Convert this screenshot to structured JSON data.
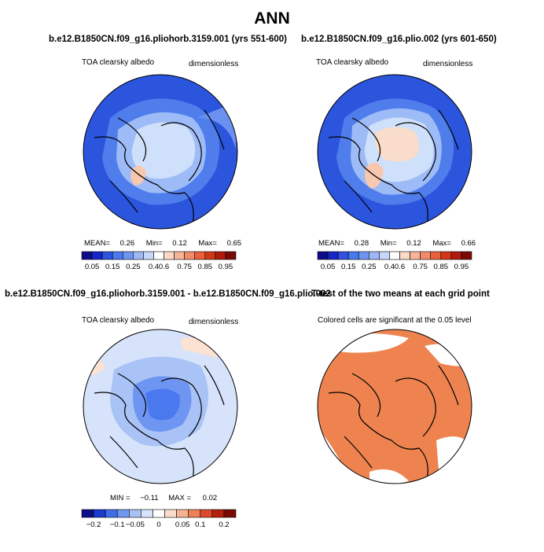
{
  "page_title": "ANN",
  "panels": {
    "top_left": {
      "title": "b.e12.B1850CN.f09_g16.pliohorb.3159.001 (yrs 551-600)",
      "left_label": "TOA clearsky albedo",
      "right_label": "dimensionless",
      "stats": {
        "mean_label": "MEAN=",
        "mean": "0.26",
        "min_label": "Min=",
        "min": "0.12",
        "max_label": "Max=",
        "max": "0.65"
      }
    },
    "top_right": {
      "title": "b.e12.B1850CN.f09_g16.plio.002 (yrs 601-650)",
      "left_label": "TOA clearsky albedo",
      "right_label": "dimensionless",
      "stats": {
        "mean_label": "MEAN=",
        "mean": "0.28",
        "min_label": "Min=",
        "min": "0.12",
        "max_label": "Max=",
        "max": "0.66"
      }
    },
    "bottom_left": {
      "title": "b.e12.B1850CN.f09_g16.pliohorb.3159.001 - b.e12.B1850CN.f09_g16.plio.002",
      "left_label": "TOA clearsky albedo",
      "right_label": "dimensionless",
      "stats": {
        "min_label": "MIN =",
        "min": "−0.11",
        "max_label": "MAX =",
        "max": "0.02"
      }
    },
    "bottom_right": {
      "title": "T-test of the two means at each grid point",
      "subtitle": "Colored cells are significant at the 0.05 level"
    }
  },
  "colorbars": {
    "abs": {
      "colors": [
        "#0d0d8a",
        "#1426c8",
        "#2f52e0",
        "#4a78ee",
        "#6f95f2",
        "#9cb6f6",
        "#c6d8fa",
        "#ffffff",
        "#fbd9c6",
        "#f7b499",
        "#f08c6c",
        "#e8603c",
        "#d23818",
        "#b01a0c",
        "#7a0a06"
      ],
      "tick_labels": [
        "0.05",
        "0.15",
        "0.25",
        "0.4",
        "0.6",
        "0.75",
        "0.85",
        "0.95"
      ]
    },
    "diff": {
      "colors": [
        "#0d0d8a",
        "#1a3ad0",
        "#3f6ee8",
        "#7097f0",
        "#a8c2f6",
        "#d7e3fb",
        "#ffffff",
        "#fbdcc8",
        "#f6b294",
        "#ec8058",
        "#dd4a2a",
        "#b4200e",
        "#7a0a06"
      ],
      "tick_labels": [
        "−0.2",
        "−0.1",
        "−0.05",
        "0",
        "0.05",
        "0.1",
        "0.2"
      ]
    }
  },
  "chart_data": [
    {
      "type": "heatmap",
      "title": "b.e12.B1850CN.f09_g16.pliohorb.3159.001 (yrs 551-600)",
      "variable": "TOA clearsky albedo",
      "units": "dimensionless",
      "mean": 0.26,
      "min": 0.12,
      "max": 0.65,
      "levels": [
        0.05,
        0.1,
        0.15,
        0.2,
        0.25,
        0.3,
        0.4,
        0.5,
        0.6,
        0.7,
        0.75,
        0.8,
        0.85,
        0.9,
        0.95
      ]
    },
    {
      "type": "heatmap",
      "title": "b.e12.B1850CN.f09_g16.plio.002 (yrs 601-650)",
      "variable": "TOA clearsky albedo",
      "units": "dimensionless",
      "mean": 0.28,
      "min": 0.12,
      "max": 0.66,
      "levels": [
        0.05,
        0.1,
        0.15,
        0.2,
        0.25,
        0.3,
        0.4,
        0.5,
        0.6,
        0.7,
        0.75,
        0.8,
        0.85,
        0.9,
        0.95
      ]
    },
    {
      "type": "heatmap",
      "title": "b.e12.B1850CN.f09_g16.pliohorb.3159.001 - b.e12.B1850CN.f09_g16.plio.002",
      "variable": "TOA clearsky albedo",
      "units": "dimensionless",
      "min": -0.11,
      "max": 0.02,
      "levels": [
        -0.2,
        -0.15,
        -0.1,
        -0.07,
        -0.05,
        -0.02,
        0,
        0.02,
        0.05,
        0.07,
        0.1,
        0.15,
        0.2
      ]
    },
    {
      "type": "heatmap",
      "title": "T-test of the two means at each grid point",
      "subtitle": "Colored cells are significant at the 0.05 level"
    }
  ]
}
